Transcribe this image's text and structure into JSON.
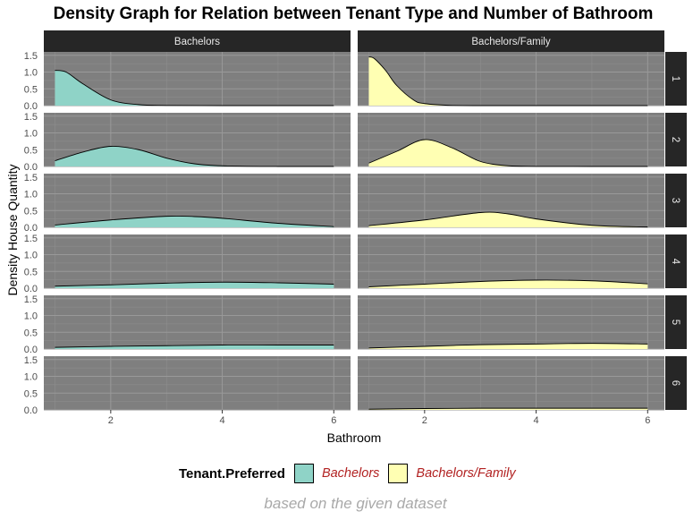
{
  "chart_data": {
    "type": "area",
    "title": "Density Graph for Relation between Tenant Type and Number of Bathroom",
    "xlabel": "Bathroom",
    "ylabel": "Density House Quantity",
    "caption": "based on the given dataset",
    "xlim": [
      0.8,
      6.3
    ],
    "ylim": [
      0,
      1.6
    ],
    "x_ticks": [
      2,
      4,
      6
    ],
    "y_ticks": [
      "0.0",
      "0.5",
      "1.0",
      "1.5"
    ],
    "col_facets": [
      "Bachelors",
      "Bachelors/Family"
    ],
    "row_facets": [
      "1",
      "2",
      "3",
      "4",
      "5",
      "6"
    ],
    "legend": {
      "title": "Tenant.Preferred",
      "position": "bottom",
      "entries": [
        {
          "label": "Bachelors",
          "color": "#8fd3c7"
        },
        {
          "label": "Bachelors/Family",
          "color": "#ffffb3"
        }
      ]
    },
    "panel_background": "#7f7f7f",
    "strip_background": "#262626",
    "grid": true,
    "panels": [
      {
        "row": "1",
        "col": "Bachelors",
        "x": [
          1,
          1.2,
          1.5,
          2,
          2.5,
          3,
          4,
          5,
          6
        ],
        "y": [
          1.05,
          1.0,
          0.65,
          0.17,
          0.03,
          0.005,
          0,
          0,
          0
        ]
      },
      {
        "row": "1",
        "col": "Bachelors/Family",
        "x": [
          1,
          1.1,
          1.3,
          1.5,
          1.8,
          2,
          2.5,
          3,
          4,
          5,
          6
        ],
        "y": [
          1.45,
          1.4,
          1.05,
          0.6,
          0.17,
          0.06,
          0.005,
          0,
          0,
          0,
          0
        ]
      },
      {
        "row": "2",
        "col": "Bachelors",
        "x": [
          1,
          1.5,
          2,
          2.5,
          3,
          3.5,
          4,
          5,
          6
        ],
        "y": [
          0.17,
          0.43,
          0.6,
          0.5,
          0.25,
          0.08,
          0.02,
          0,
          0
        ]
      },
      {
        "row": "2",
        "col": "Bachelors/Family",
        "x": [
          1,
          1.5,
          2,
          2.5,
          3,
          3.5,
          4,
          5,
          6
        ],
        "y": [
          0.1,
          0.45,
          0.8,
          0.55,
          0.15,
          0.02,
          0.003,
          0,
          0
        ]
      },
      {
        "row": "3",
        "col": "Bachelors",
        "x": [
          1,
          2,
          3,
          3.5,
          4,
          5,
          6
        ],
        "y": [
          0.07,
          0.22,
          0.33,
          0.32,
          0.27,
          0.12,
          0.02
        ]
      },
      {
        "row": "3",
        "col": "Bachelors/Family",
        "x": [
          1,
          2,
          3,
          3.5,
          4,
          5,
          6
        ],
        "y": [
          0.05,
          0.22,
          0.44,
          0.4,
          0.25,
          0.06,
          0.01
        ]
      },
      {
        "row": "4",
        "col": "Bachelors",
        "x": [
          1,
          2,
          3,
          4,
          5,
          6
        ],
        "y": [
          0.06,
          0.1,
          0.15,
          0.18,
          0.16,
          0.12
        ]
      },
      {
        "row": "4",
        "col": "Bachelors/Family",
        "x": [
          1,
          2,
          3,
          4,
          5,
          6
        ],
        "y": [
          0.04,
          0.12,
          0.2,
          0.24,
          0.22,
          0.13
        ]
      },
      {
        "row": "5",
        "col": "Bachelors",
        "x": [
          1,
          2,
          3,
          4,
          5,
          6
        ],
        "y": [
          0.05,
          0.08,
          0.1,
          0.12,
          0.12,
          0.12
        ]
      },
      {
        "row": "5",
        "col": "Bachelors/Family",
        "x": [
          1,
          2,
          3,
          4,
          5,
          6
        ],
        "y": [
          0.03,
          0.08,
          0.13,
          0.15,
          0.17,
          0.15
        ]
      },
      {
        "row": "6",
        "col": "Bachelors/Family",
        "x": [
          1,
          2,
          3,
          4,
          5,
          6
        ],
        "y": [
          0.02,
          0.04,
          0.05,
          0.05,
          0.05,
          0.05
        ]
      }
    ]
  }
}
